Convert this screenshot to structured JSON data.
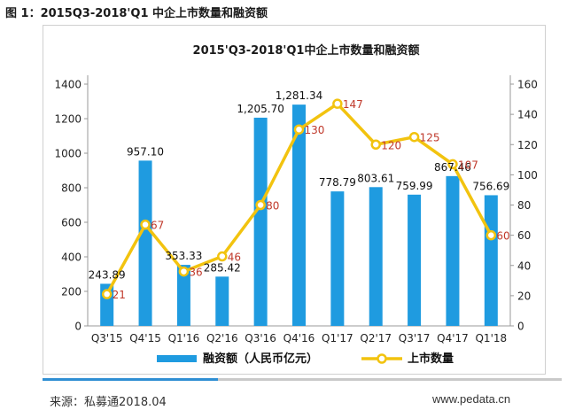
{
  "figure_caption": "图 1：2015Q3-2018'Q1 中企上市数量和融资额",
  "source": "来源：私募通2018.04",
  "website": "www.pedata.cn",
  "colors": {
    "bar": "#1f9be0",
    "line": "#f2c30f",
    "line_label": "#c0392b",
    "axis": "#999999"
  },
  "chart_data": {
    "type": "bar",
    "title": "2015'Q3-2018'Q1中企上市数量和融资额",
    "categories": [
      "Q3'15",
      "Q4'15",
      "Q1'16",
      "Q2'16",
      "Q3'16",
      "Q4'16",
      "Q1'17",
      "Q2'17",
      "Q3'17",
      "Q4'17",
      "Q1'18"
    ],
    "series": [
      {
        "name": "融资额（人民币亿元）",
        "type": "bar",
        "axis": "left",
        "values": [
          243.89,
          957.1,
          353.33,
          285.42,
          1205.7,
          1281.34,
          778.79,
          803.61,
          759.99,
          867.46,
          756.69
        ],
        "labels": [
          "243.89",
          "957.10",
          "353.33",
          "285.42",
          "1,205.70",
          "1,281.34",
          "778.79",
          "803.61",
          "759.99",
          "867.46",
          "756.69"
        ]
      },
      {
        "name": "上市数量",
        "type": "line",
        "axis": "right",
        "values": [
          21,
          67,
          36,
          46,
          80,
          130,
          147,
          120,
          125,
          107,
          60
        ]
      }
    ],
    "y_left": {
      "lim": [
        0,
        1400
      ],
      "ticks": [
        0,
        200,
        400,
        600,
        800,
        1000,
        1200,
        1400
      ]
    },
    "y_right": {
      "lim": [
        0,
        160
      ],
      "ticks": [
        0,
        20,
        40,
        60,
        80,
        100,
        120,
        140,
        160
      ]
    },
    "legend_position": "bottom",
    "grid": false
  }
}
